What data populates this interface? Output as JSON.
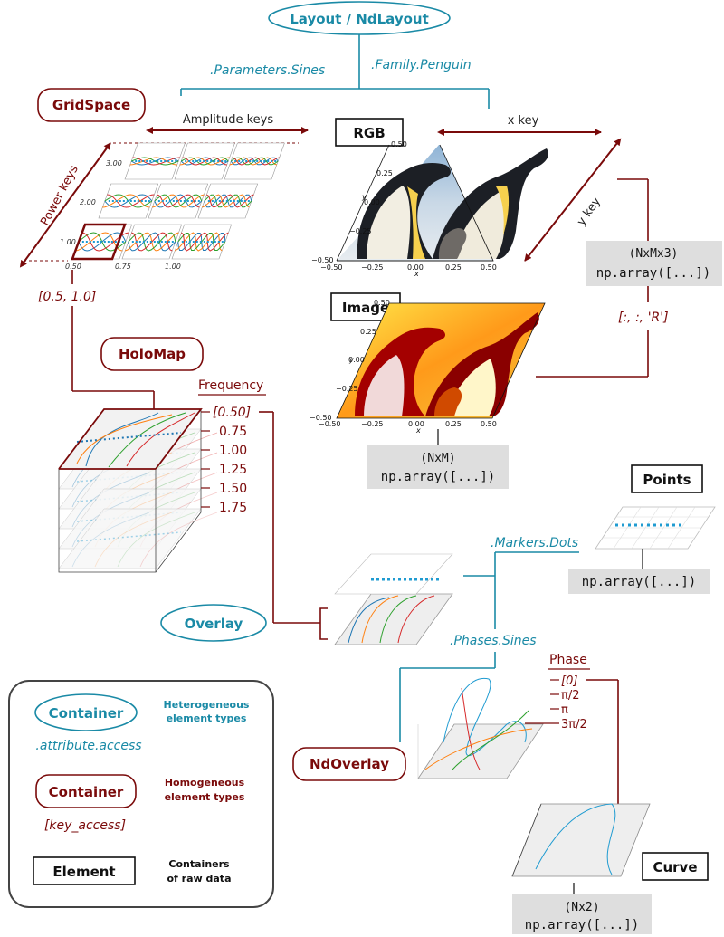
{
  "containers": {
    "layout": "Layout / NdLayout",
    "gridspace": "GridSpace",
    "holomap": "HoloMap",
    "overlay": "Overlay",
    "ndoverlay": "NdOverlay"
  },
  "elements": {
    "rgb": "RGB",
    "image": "Image",
    "points": "Points",
    "curve": "Curve"
  },
  "attribute_access": {
    "params_sines": ".Parameters.Sines",
    "family_penguin": ".Family.Penguin",
    "markers_dots": ".Markers.Dots",
    "phases_sines": ".Phases.Sines"
  },
  "keys": {
    "amplitude": "Amplitude keys",
    "power": "Power keys",
    "x_key": "x key",
    "y_key": "y key",
    "grid_selection": "[0.5, 1.0]",
    "rgb_slice": "[:, :, 'R']"
  },
  "gridspace_ticks": {
    "x": [
      "0.50",
      "0.75",
      "1.00"
    ],
    "y": [
      "3.00",
      "2.00",
      "1.00"
    ]
  },
  "rgb_axes": {
    "x_ticks": [
      "−0.50",
      "−0.25",
      "0.00",
      "0.25",
      "0.50"
    ],
    "y_ticks": [
      "0.50",
      "0.25",
      "0.00",
      "−0.25",
      "−0.50"
    ],
    "x_label": "x",
    "y_label": "y"
  },
  "frequency": {
    "title": "Frequency",
    "values": [
      "[0.50]",
      "0.75",
      "1.00",
      "1.25",
      "1.50",
      "1.75"
    ]
  },
  "phase": {
    "title": "Phase",
    "values": [
      "[0]",
      "π/2",
      "π",
      "3π/2"
    ]
  },
  "arrays": {
    "rgb_shape": "(NxMx3)",
    "image_shape": "(NxM)",
    "curve_shape": "(Nx2)",
    "array_text": "np.array([...])"
  },
  "legend": {
    "container_label": "Container",
    "teal_desc_line1": "Heterogeneous",
    "teal_desc_line2": "element types",
    "teal_access": ".attribute.access",
    "red_desc_line1": "Homogeneous",
    "red_desc_line2": "element types",
    "red_access": "[key_access]",
    "element_label": "Element",
    "black_desc_line1": "Containers",
    "black_desc_line2": "of raw data"
  },
  "colors": {
    "teal": "#1a8aa6",
    "dark_red": "#7a0a0a",
    "array_bg": "#dedede",
    "series": [
      "#1f77b4",
      "#ff7f0e",
      "#2ca02c",
      "#d62728"
    ]
  }
}
